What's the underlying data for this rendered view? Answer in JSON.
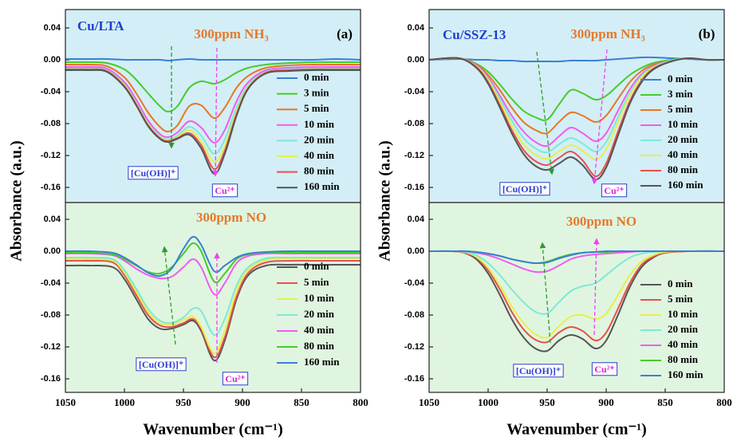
{
  "chart_data": [
    {
      "type": "line",
      "title": "Cu/LTA",
      "panel_label": "(a)",
      "subtitle": "300ppm NH₃",
      "ylabel": "Absorbance (a.u.)",
      "background": "#d3eef6",
      "x": [
        1050,
        1030,
        1015,
        1000,
        990,
        980,
        970,
        963,
        955,
        945,
        935,
        924,
        915,
        905,
        895,
        880,
        860,
        840,
        820,
        800
      ],
      "xlim": [
        1050,
        800
      ],
      "ylim": [
        -0.179,
        0.063
      ],
      "yticks": [
        0.04,
        {
          "value": 0,
          "label": "0.00"
        },
        -0.04,
        -0.08,
        -0.12,
        -0.16
      ],
      "legend": "lower right",
      "annotations": [
        "[Cu(OH)]⁺",
        "Cu²⁺"
      ],
      "series": [
        {
          "name": "0 min",
          "color": "#3a7fd5",
          "values": [
            0.001,
            0.001,
            0.001,
            0,
            0,
            0,
            0,
            -0.001,
            0,
            0.001,
            0,
            0,
            0,
            0,
            0,
            0,
            0,
            0,
            0.001,
            0
          ]
        },
        {
          "name": "3 min",
          "color": "#44cc2a",
          "values": [
            -0.003,
            -0.003,
            -0.004,
            -0.012,
            -0.025,
            -0.042,
            -0.058,
            -0.065,
            -0.058,
            -0.035,
            -0.027,
            -0.03,
            -0.025,
            -0.016,
            -0.01,
            -0.006,
            -0.004,
            -0.003,
            -0.003,
            -0.003
          ]
        },
        {
          "name": "5 min",
          "color": "#e87722",
          "values": [
            -0.006,
            -0.006,
            -0.008,
            -0.022,
            -0.042,
            -0.066,
            -0.084,
            -0.09,
            -0.082,
            -0.058,
            -0.057,
            -0.073,
            -0.06,
            -0.035,
            -0.02,
            -0.01,
            -0.007,
            -0.006,
            -0.006,
            -0.006
          ]
        },
        {
          "name": "10 min",
          "color": "#f05cf0",
          "values": [
            -0.009,
            -0.009,
            -0.011,
            -0.028,
            -0.05,
            -0.076,
            -0.093,
            -0.097,
            -0.091,
            -0.077,
            -0.085,
            -0.104,
            -0.088,
            -0.052,
            -0.028,
            -0.013,
            -0.01,
            -0.009,
            -0.009,
            -0.009
          ]
        },
        {
          "name": "20 min",
          "color": "#7fe8d8",
          "values": [
            -0.011,
            -0.011,
            -0.013,
            -0.031,
            -0.054,
            -0.08,
            -0.096,
            -0.1,
            -0.095,
            -0.084,
            -0.095,
            -0.118,
            -0.1,
            -0.06,
            -0.032,
            -0.015,
            -0.012,
            -0.011,
            -0.011,
            -0.011
          ]
        },
        {
          "name": "40 min",
          "color": "#e5f04a",
          "values": [
            -0.012,
            -0.012,
            -0.014,
            -0.032,
            -0.055,
            -0.081,
            -0.097,
            -0.101,
            -0.097,
            -0.088,
            -0.102,
            -0.128,
            -0.108,
            -0.065,
            -0.034,
            -0.016,
            -0.013,
            -0.012,
            -0.012,
            -0.012
          ]
        },
        {
          "name": "80 min",
          "color": "#e8504a",
          "values": [
            -0.012,
            -0.012,
            -0.014,
            -0.033,
            -0.056,
            -0.082,
            -0.098,
            -0.102,
            -0.098,
            -0.092,
            -0.107,
            -0.137,
            -0.114,
            -0.068,
            -0.035,
            -0.016,
            -0.013,
            -0.012,
            -0.012,
            -0.012
          ]
        },
        {
          "name": "160 min",
          "color": "#555555",
          "values": [
            -0.013,
            -0.013,
            -0.015,
            -0.034,
            -0.057,
            -0.083,
            -0.099,
            -0.103,
            -0.099,
            -0.094,
            -0.111,
            -0.143,
            -0.118,
            -0.07,
            -0.036,
            -0.017,
            -0.014,
            -0.013,
            -0.013,
            -0.013
          ]
        }
      ]
    },
    {
      "type": "line",
      "subtitle": "300ppm NO",
      "xlabel": "Wavenumber (cm⁻¹)",
      "background": "#e0f5e0",
      "x": [
        1050,
        1030,
        1010,
        1000,
        990,
        980,
        970,
        960,
        950,
        942,
        935,
        924,
        915,
        905,
        895,
        880,
        860,
        840,
        820,
        800
      ],
      "xlim": [
        1050,
        800
      ],
      "xticks": [
        1050,
        1000,
        950,
        900,
        850,
        800
      ],
      "ylim": [
        -0.177,
        0.061
      ],
      "yticks": [
        0.04,
        {
          "value": 0,
          "label": "0.00"
        },
        -0.04,
        -0.08,
        -0.12,
        -0.16
      ],
      "legend": "lower right",
      "annotations": [
        "[Cu(OH)]⁺",
        "Cu²⁺"
      ],
      "series": [
        {
          "name": "0 min",
          "color": "#555555",
          "values": [
            -0.018,
            -0.018,
            -0.02,
            -0.035,
            -0.06,
            -0.085,
            -0.097,
            -0.097,
            -0.092,
            -0.087,
            -0.1,
            -0.137,
            -0.112,
            -0.06,
            -0.03,
            -0.018,
            -0.017,
            -0.017,
            -0.017,
            -0.017
          ]
        },
        {
          "name": "5 min",
          "color": "#e8504a",
          "values": [
            -0.012,
            -0.012,
            -0.014,
            -0.03,
            -0.055,
            -0.08,
            -0.093,
            -0.095,
            -0.09,
            -0.085,
            -0.097,
            -0.133,
            -0.108,
            -0.057,
            -0.027,
            -0.014,
            -0.012,
            -0.012,
            -0.012,
            -0.012
          ]
        },
        {
          "name": "10 min",
          "color": "#e5f04a",
          "values": [
            -0.01,
            -0.01,
            -0.012,
            -0.027,
            -0.051,
            -0.076,
            -0.09,
            -0.092,
            -0.086,
            -0.082,
            -0.095,
            -0.128,
            -0.1,
            -0.05,
            -0.023,
            -0.011,
            -0.009,
            -0.009,
            -0.009,
            -0.009
          ]
        },
        {
          "name": "20 min",
          "color": "#7fe8d8",
          "values": [
            -0.008,
            -0.008,
            -0.01,
            -0.024,
            -0.047,
            -0.072,
            -0.087,
            -0.09,
            -0.083,
            -0.072,
            -0.075,
            -0.105,
            -0.085,
            -0.043,
            -0.02,
            -0.009,
            -0.008,
            -0.008,
            -0.008,
            -0.008
          ]
        },
        {
          "name": "40 min",
          "color": "#f05cf0",
          "values": [
            -0.003,
            -0.003,
            -0.005,
            -0.012,
            -0.022,
            -0.03,
            -0.034,
            -0.032,
            -0.02,
            -0.01,
            -0.02,
            -0.054,
            -0.04,
            -0.015,
            -0.006,
            -0.003,
            -0.003,
            -0.003,
            -0.003,
            -0.003
          ]
        },
        {
          "name": "80 min",
          "color": "#44cc2a",
          "values": [
            -0.002,
            -0.002,
            -0.004,
            -0.01,
            -0.018,
            -0.026,
            -0.028,
            -0.02,
            -0.003,
            0.01,
            0.0,
            -0.038,
            -0.028,
            -0.01,
            -0.004,
            -0.002,
            -0.002,
            -0.002,
            -0.002,
            -0.002
          ]
        },
        {
          "name": "160 min",
          "color": "#3a7fd5",
          "values": [
            0.0,
            0.0,
            -0.002,
            -0.008,
            -0.017,
            -0.027,
            -0.031,
            -0.022,
            0.003,
            0.018,
            0.008,
            -0.025,
            -0.018,
            -0.008,
            -0.003,
            -0.001,
            0,
            0,
            0,
            0
          ]
        }
      ]
    },
    {
      "type": "line",
      "title": "Cu/SSZ-13",
      "panel_label": "(b)",
      "subtitle": "300ppm NH₃",
      "ylabel": "Absorbance (a.u.)",
      "background": "#d3eef6",
      "x": [
        1050,
        1025,
        1010,
        1000,
        990,
        980,
        970,
        960,
        950,
        940,
        930,
        920,
        909,
        900,
        890,
        880,
        870,
        860,
        845,
        830,
        815,
        800
      ],
      "xlim": [
        1050,
        800
      ],
      "ylim": [
        -0.179,
        0.063
      ],
      "yticks": [
        0.04,
        {
          "value": 0,
          "label": "0.00"
        },
        -0.04,
        -0.08,
        -0.12,
        -0.16
      ],
      "legend": "lower right",
      "annotations": [
        "[Cu(OH)]⁺",
        "Cu²⁺"
      ],
      "series": [
        {
          "name": "0 min",
          "color": "#3a7fd5",
          "values": [
            0,
            0.001,
            0,
            0,
            -0.001,
            -0.001,
            -0.002,
            -0.002,
            -0.002,
            -0.002,
            -0.001,
            -0.001,
            -0.001,
            0,
            0.001,
            0.002,
            0.003,
            0.003,
            0.002,
            0.001,
            0,
            0
          ]
        },
        {
          "name": "3 min",
          "color": "#44cc2a",
          "values": [
            0,
            0.002,
            -0.005,
            -0.015,
            -0.031,
            -0.049,
            -0.064,
            -0.072,
            -0.075,
            -0.056,
            -0.038,
            -0.042,
            -0.05,
            -0.045,
            -0.032,
            -0.019,
            -0.01,
            -0.004,
            0,
            0.002,
            0,
            0
          ]
        },
        {
          "name": "5 min",
          "color": "#e87722",
          "values": [
            0,
            0.002,
            -0.006,
            -0.019,
            -0.038,
            -0.06,
            -0.078,
            -0.088,
            -0.092,
            -0.078,
            -0.066,
            -0.07,
            -0.078,
            -0.07,
            -0.049,
            -0.028,
            -0.014,
            -0.006,
            -0.001,
            0.002,
            0,
            0
          ]
        },
        {
          "name": "10 min",
          "color": "#f05cf0",
          "values": [
            0,
            0.002,
            -0.007,
            -0.022,
            -0.045,
            -0.07,
            -0.09,
            -0.103,
            -0.108,
            -0.096,
            -0.085,
            -0.092,
            -0.102,
            -0.092,
            -0.064,
            -0.037,
            -0.018,
            -0.008,
            -0.001,
            0.002,
            0,
            0
          ]
        },
        {
          "name": "20 min",
          "color": "#7fe8d8",
          "values": [
            0,
            0.002,
            -0.008,
            -0.024,
            -0.049,
            -0.076,
            -0.098,
            -0.111,
            -0.116,
            -0.106,
            -0.098,
            -0.105,
            -0.115,
            -0.103,
            -0.072,
            -0.042,
            -0.02,
            -0.009,
            -0.001,
            0.002,
            0,
            0
          ]
        },
        {
          "name": "40 min",
          "color": "#e5f04a",
          "values": [
            0,
            0.002,
            -0.008,
            -0.026,
            -0.053,
            -0.082,
            -0.106,
            -0.119,
            -0.124,
            -0.115,
            -0.107,
            -0.114,
            -0.125,
            -0.112,
            -0.078,
            -0.045,
            -0.022,
            -0.01,
            -0.002,
            0.002,
            0,
            0
          ]
        },
        {
          "name": "80 min",
          "color": "#e8504a",
          "values": [
            0,
            0.002,
            -0.009,
            -0.028,
            -0.057,
            -0.088,
            -0.113,
            -0.127,
            -0.132,
            -0.123,
            -0.115,
            -0.126,
            -0.146,
            -0.13,
            -0.09,
            -0.052,
            -0.026,
            -0.011,
            -0.002,
            0.002,
            0,
            0
          ]
        },
        {
          "name": "160 min",
          "color": "#555555",
          "values": [
            0,
            0.002,
            -0.01,
            -0.03,
            -0.06,
            -0.092,
            -0.118,
            -0.133,
            -0.138,
            -0.13,
            -0.122,
            -0.132,
            -0.15,
            -0.135,
            -0.095,
            -0.055,
            -0.028,
            -0.012,
            -0.002,
            0.002,
            0,
            0
          ]
        }
      ]
    },
    {
      "type": "line",
      "subtitle": "300ppm NO",
      "xlabel": "Wavenumber (cm⁻¹)",
      "background": "#e0f5e0",
      "x": [
        1050,
        1030,
        1020,
        1010,
        1000,
        990,
        980,
        970,
        960,
        950,
        940,
        930,
        920,
        909,
        900,
        890,
        880,
        870,
        860,
        850,
        830,
        800
      ],
      "xlim": [
        1050,
        800
      ],
      "xticks": [
        1050,
        1000,
        950,
        900,
        850,
        800
      ],
      "ylim": [
        -0.177,
        0.061
      ],
      "yticks": [
        0.04,
        {
          "value": 0,
          "label": "0.00"
        },
        -0.04,
        -0.08,
        -0.12,
        -0.16
      ],
      "legend": "lower right",
      "annotations": [
        "[Cu(OH)]⁺",
        "Cu²⁺"
      ],
      "series": [
        {
          "name": "0 min",
          "color": "#555555",
          "values": [
            0,
            0,
            -0.002,
            -0.01,
            -0.028,
            -0.055,
            -0.085,
            -0.108,
            -0.122,
            -0.125,
            -0.112,
            -0.105,
            -0.11,
            -0.122,
            -0.112,
            -0.08,
            -0.045,
            -0.02,
            -0.008,
            -0.002,
            0,
            0
          ]
        },
        {
          "name": "5 min",
          "color": "#e8504a",
          "values": [
            0,
            0,
            -0.002,
            -0.008,
            -0.024,
            -0.048,
            -0.076,
            -0.098,
            -0.111,
            -0.114,
            -0.102,
            -0.095,
            -0.1,
            -0.112,
            -0.102,
            -0.072,
            -0.04,
            -0.017,
            -0.007,
            -0.002,
            0,
            0
          ]
        },
        {
          "name": "10 min",
          "color": "#e5f04a",
          "values": [
            0,
            0,
            -0.001,
            -0.007,
            -0.021,
            -0.043,
            -0.069,
            -0.09,
            -0.104,
            -0.108,
            -0.094,
            -0.082,
            -0.08,
            -0.085,
            -0.078,
            -0.055,
            -0.03,
            -0.013,
            -0.005,
            -0.001,
            0,
            0
          ]
        },
        {
          "name": "20 min",
          "color": "#7fe8d8",
          "values": [
            0,
            0,
            -0.001,
            -0.005,
            -0.015,
            -0.03,
            -0.048,
            -0.064,
            -0.076,
            -0.078,
            -0.064,
            -0.05,
            -0.044,
            -0.04,
            -0.03,
            -0.018,
            -0.008,
            -0.003,
            -0.001,
            0,
            0,
            0
          ]
        },
        {
          "name": "40 min",
          "color": "#f05cf0",
          "values": [
            0,
            0,
            0,
            -0.002,
            -0.005,
            -0.01,
            -0.016,
            -0.022,
            -0.026,
            -0.025,
            -0.018,
            -0.01,
            -0.006,
            -0.004,
            -0.003,
            -0.002,
            -0.001,
            0,
            0,
            0,
            0,
            0
          ]
        },
        {
          "name": "80 min",
          "color": "#44cc2a",
          "values": [
            0,
            0,
            0,
            -0.001,
            -0.003,
            -0.006,
            -0.01,
            -0.013,
            -0.015,
            -0.013,
            -0.008,
            -0.004,
            -0.002,
            -0.001,
            -0.001,
            0,
            0,
            0,
            0,
            0,
            0,
            0
          ]
        },
        {
          "name": "160 min",
          "color": "#3a7fd5",
          "values": [
            0,
            0,
            0,
            -0.001,
            -0.003,
            -0.006,
            -0.01,
            -0.013,
            -0.015,
            -0.014,
            -0.009,
            -0.005,
            -0.002,
            -0.001,
            0,
            0,
            0,
            0,
            0,
            0,
            0,
            0
          ]
        }
      ]
    }
  ]
}
